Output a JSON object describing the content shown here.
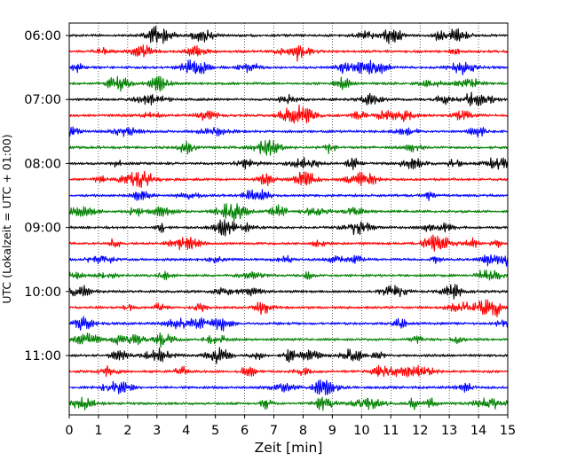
{
  "chart_data": {
    "type": "line",
    "title": "",
    "xlabel": "Zeit  [min]",
    "ylabel": "UTC (Lokalzeit = UTC + 01:00)",
    "xlim": [
      0,
      15
    ],
    "x_ticks": [
      "0",
      "1",
      "2",
      "3",
      "4",
      "5",
      "6",
      "7",
      "8",
      "9",
      "10",
      "11",
      "12",
      "13",
      "14",
      "15"
    ],
    "y_tick_labels": [
      "06:00",
      "07:00",
      "08:00",
      "09:00",
      "10:00",
      "11:00"
    ],
    "trace_colors": [
      "#000000",
      "#ff0000",
      "#0000ff",
      "#008000"
    ],
    "trace_start_times": [
      "06:00",
      "06:15",
      "06:30",
      "06:45",
      "07:00",
      "07:15",
      "07:30",
      "07:45",
      "08:00",
      "08:15",
      "08:30",
      "08:45",
      "09:00",
      "09:15",
      "09:30",
      "09:45",
      "10:00",
      "10:15",
      "10:30",
      "10:45",
      "11:00",
      "11:15",
      "11:30",
      "11:45"
    ],
    "grid": {
      "x": true,
      "y": false,
      "style": "dotted"
    },
    "legend": "none"
  }
}
